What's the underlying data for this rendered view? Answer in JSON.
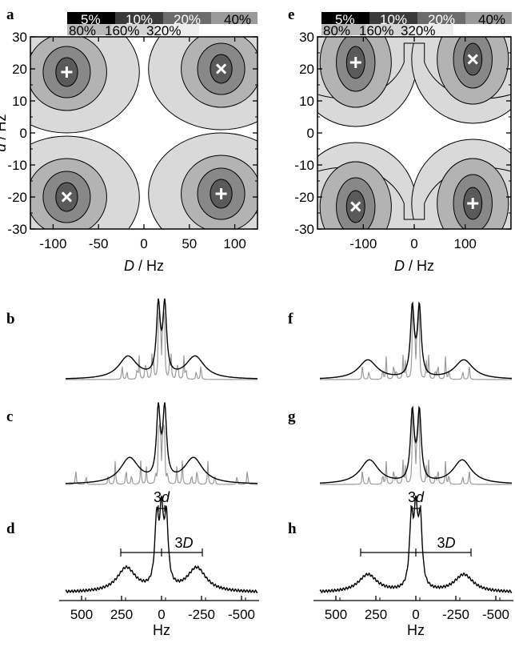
{
  "panel_labels": {
    "a": "a",
    "b": "b",
    "c": "c",
    "d": "d",
    "e": "e",
    "f": "f",
    "g": "g",
    "h": "h"
  },
  "legend": {
    "row1": [
      "5%",
      "10%",
      "20%",
      "40%"
    ],
    "row2": [
      "80%",
      "160%",
      "320%"
    ],
    "colors": [
      "#000000",
      "#3a3a3a",
      "#6c6c6c",
      "#9a9a9a",
      "#b9b9b9",
      "#d4d4d4",
      "#ededed"
    ]
  },
  "contour_colors": [
    "#d9d9d9",
    "#b3b3b3",
    "#888888",
    "#5a5a5a"
  ],
  "spectrum_color": "#000000",
  "stick_color": "#9a9a9a",
  "chart_data": [
    {
      "panel": "a",
      "type": "heatmap",
      "xlabel_var": "D",
      "xlabel_unit": " / Hz",
      "ylabel_var": "d",
      "ylabel_unit": " / Hz",
      "xlim": [
        -125,
        125
      ],
      "ylim": [
        -30,
        30
      ],
      "xticks": [
        -100,
        -50,
        0,
        50,
        100
      ],
      "yticks": [
        30,
        20,
        10,
        0,
        -10,
        -20,
        -30
      ],
      "markers": [
        {
          "x": -85,
          "y": 19,
          "symbol": "+"
        },
        {
          "x": 85,
          "y": 20,
          "symbol": "x"
        },
        {
          "x": -85,
          "y": -20,
          "symbol": "x"
        },
        {
          "x": 85,
          "y": -19,
          "symbol": "+"
        }
      ]
    },
    {
      "panel": "e",
      "type": "heatmap",
      "xlabel_var": "D",
      "xlabel_unit": " / Hz",
      "ylabel_var": "",
      "ylabel_unit": "",
      "xlim": [
        -190,
        190
      ],
      "ylim": [
        -30,
        30
      ],
      "xticks": [
        -100,
        0,
        100
      ],
      "yticks": [
        30,
        20,
        10,
        0,
        -10,
        -20,
        -30
      ],
      "markers": [
        {
          "x": -115,
          "y": 22,
          "symbol": "+"
        },
        {
          "x": 115,
          "y": 23,
          "symbol": "x"
        },
        {
          "x": -115,
          "y": -23,
          "symbol": "x"
        },
        {
          "x": 115,
          "y": -22,
          "symbol": "+"
        }
      ]
    },
    {
      "panel": "b",
      "type": "line",
      "D": 85,
      "d": 20,
      "xlim": [
        600,
        -600
      ],
      "peaks": [
        {
          "x": 20,
          "h": 0.86
        },
        {
          "x": -20,
          "h": 0.86
        },
        {
          "x": 210,
          "h": 0.28
        },
        {
          "x": -210,
          "h": 0.28
        }
      ]
    },
    {
      "panel": "c",
      "type": "line",
      "D": 185,
      "d": 20,
      "xlim": [
        600,
        -600
      ],
      "peaks": [
        {
          "x": 20,
          "h": 0.86
        },
        {
          "x": -20,
          "h": 0.86
        },
        {
          "x": 200,
          "h": 0.32
        },
        {
          "x": -200,
          "h": 0.32
        }
      ]
    },
    {
      "panel": "d",
      "type": "line",
      "xlim": [
        600,
        -600
      ],
      "xticks": [
        500,
        250,
        0,
        -250,
        -500
      ],
      "xlabel": "Hz",
      "annotations": {
        "small": "3",
        "small_var": "d",
        "small_half_width": 20,
        "big": "3",
        "big_var": "D",
        "big_half_width": 255
      },
      "peaks": [
        {
          "x": 30,
          "h": 0.82
        },
        {
          "x": 0,
          "h": 0.86
        },
        {
          "x": -30,
          "h": 0.82
        },
        {
          "x": 220,
          "h": 0.3
        },
        {
          "x": -220,
          "h": 0.3
        }
      ]
    },
    {
      "panel": "f",
      "type": "line",
      "D": 115,
      "d": 22,
      "xlim": [
        600,
        -600
      ],
      "peaks": [
        {
          "x": 22,
          "h": 0.86
        },
        {
          "x": -22,
          "h": 0.86
        },
        {
          "x": 300,
          "h": 0.24
        },
        {
          "x": -300,
          "h": 0.24
        }
      ]
    },
    {
      "panel": "g",
      "type": "line",
      "D": 115,
      "d": 22,
      "xlim": [
        600,
        -600
      ],
      "peaks": [
        {
          "x": 22,
          "h": 0.86
        },
        {
          "x": -22,
          "h": 0.86
        },
        {
          "x": 290,
          "h": 0.3
        },
        {
          "x": -290,
          "h": 0.3
        }
      ]
    },
    {
      "panel": "h",
      "type": "line",
      "xlim": [
        600,
        -600
      ],
      "xticks": [
        500,
        250,
        0,
        -250,
        -500
      ],
      "xlabel": "Hz",
      "annotations": {
        "small": "3",
        "small_var": "d",
        "small_half_width": 30,
        "big": "3",
        "big_var": "D",
        "big_half_width": 345
      },
      "peaks": [
        {
          "x": 28,
          "h": 0.82
        },
        {
          "x": 0,
          "h": 0.86
        },
        {
          "x": -28,
          "h": 0.82
        },
        {
          "x": 300,
          "h": 0.22
        },
        {
          "x": -300,
          "h": 0.22
        }
      ]
    }
  ]
}
